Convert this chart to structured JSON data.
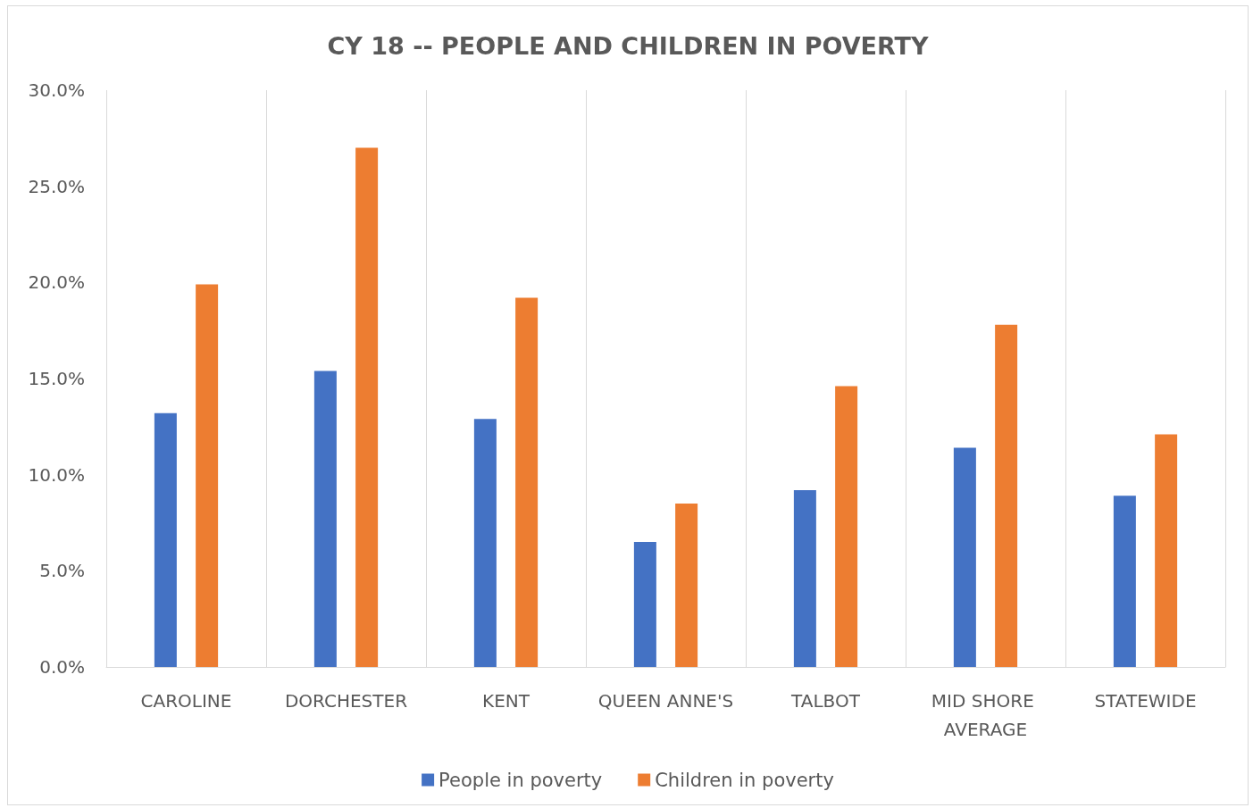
{
  "chart_data": {
    "type": "bar",
    "title": "CY 18 -- PEOPLE AND CHILDREN IN POVERTY",
    "categories": [
      "CAROLINE",
      "DORCHESTER",
      "KENT",
      "QUEEN ANNE'S",
      "TALBOT",
      "MID SHORE AVERAGE",
      "STATEWIDE"
    ],
    "series": [
      {
        "name": "People in poverty",
        "color": "#4472c4",
        "values": [
          13.2,
          15.4,
          12.9,
          6.5,
          9.2,
          11.4,
          8.9
        ]
      },
      {
        "name": "Children in poverty",
        "color": "#ed7d31",
        "values": [
          19.9,
          27.0,
          19.2,
          8.5,
          14.6,
          17.8,
          12.1
        ]
      }
    ],
    "ylim": [
      0,
      30
    ],
    "yticks": [
      {
        "value": 0,
        "label": "0.0%"
      },
      {
        "value": 5,
        "label": "5.0%"
      },
      {
        "value": 10,
        "label": "10.0%"
      },
      {
        "value": 15,
        "label": "15.0%"
      },
      {
        "value": 20,
        "label": "20.0%"
      },
      {
        "value": 25,
        "label": "25.0%"
      },
      {
        "value": 30,
        "label": "30.0%"
      }
    ],
    "grid": "x",
    "legend": "bottom"
  }
}
